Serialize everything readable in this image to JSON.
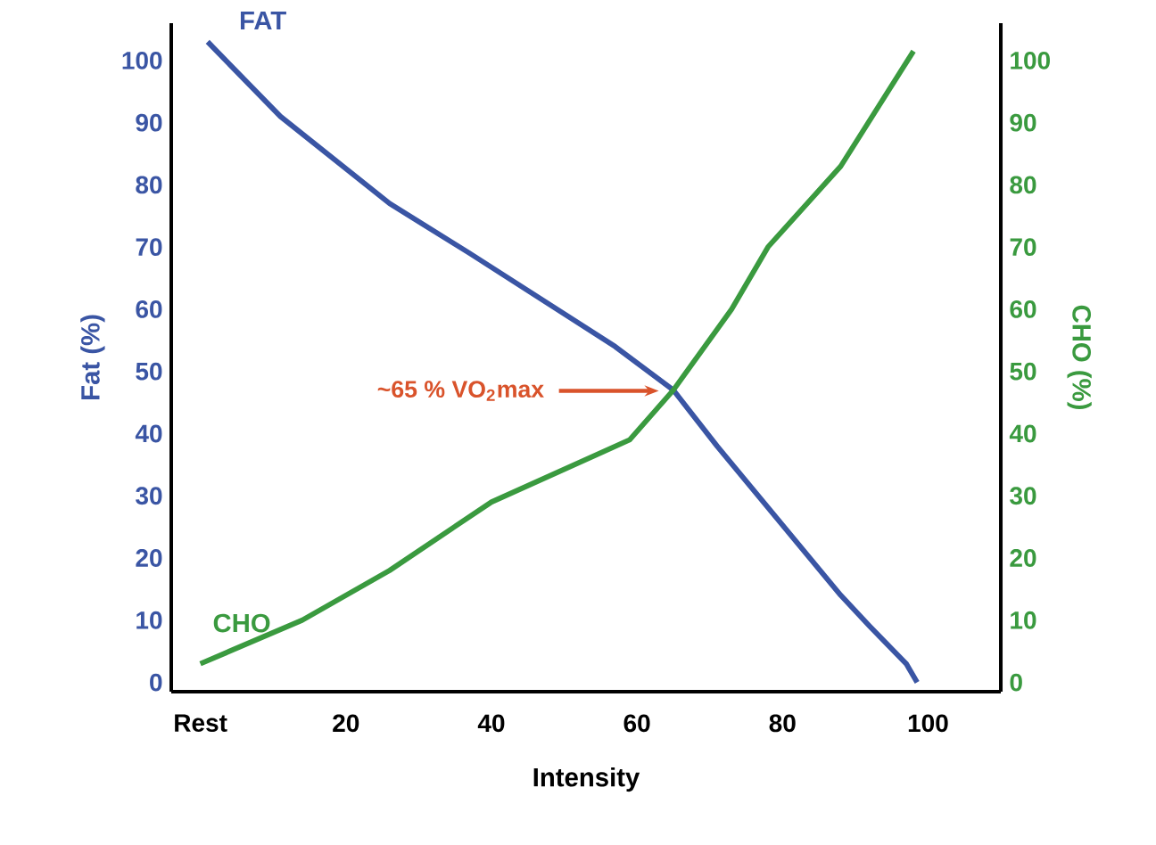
{
  "chart_data": {
    "type": "line",
    "xlabel": "Intensity",
    "ylabel": "Fat (%)",
    "y2label": "CHO (%)",
    "xlim": [
      -4,
      110
    ],
    "xticks": [
      {
        "value": 0,
        "label": "Rest"
      },
      20,
      40,
      60,
      80,
      100
    ],
    "ylim": [
      -1.5,
      106
    ],
    "yticks": [
      0,
      10,
      20,
      30,
      40,
      50,
      60,
      70,
      80,
      90,
      100
    ],
    "y2lim": [
      -1.5,
      106
    ],
    "y2ticks": [
      0,
      10,
      20,
      30,
      40,
      50,
      60,
      70,
      80,
      90,
      100
    ],
    "series": [
      {
        "name": "FAT",
        "color": "#3a55a4",
        "x": [
          1,
          11,
          26,
          37,
          57,
          65,
          71,
          88,
          92,
          97,
          98.5
        ],
        "values": [
          103,
          91,
          77,
          69,
          54,
          47,
          38,
          14,
          9,
          3,
          0
        ]
      },
      {
        "name": "CHO",
        "color": "#3a9a3f",
        "axis": "y2",
        "x": [
          0,
          14,
          26,
          40,
          59,
          65,
          73,
          78,
          88,
          98
        ],
        "values": [
          3,
          10,
          18,
          29,
          39,
          47,
          60,
          70,
          83,
          101.5
        ]
      }
    ],
    "annotations": [
      "~65 % VO$_{2}$max"
    ]
  }
}
